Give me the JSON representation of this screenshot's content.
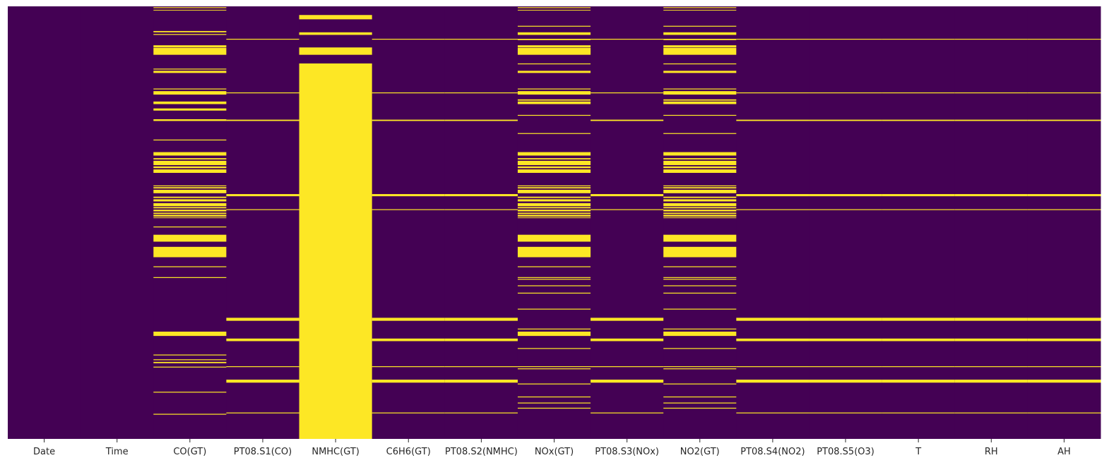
{
  "chart_data": {
    "type": "heatmap",
    "title": "",
    "xlabel": "",
    "ylabel": "",
    "colorbar": false,
    "colors": {
      "missing": "#fde725",
      "present": "#440154"
    },
    "value_meaning": "1 = missing (yellow), 0 = present (purple)",
    "row_range": [
      0,
      1
    ],
    "columns": [
      {
        "name": "Date",
        "missing_bands": []
      },
      {
        "name": "Time",
        "missing_bands": []
      },
      {
        "name": "CO(GT)",
        "missing_bands": [
          [
            0.002,
            0.004
          ],
          [
            0.008,
            0.009
          ],
          [
            0.057,
            0.06
          ],
          [
            0.064,
            0.066
          ],
          [
            0.09,
            0.095
          ],
          [
            0.096,
            0.112
          ],
          [
            0.144,
            0.146
          ],
          [
            0.149,
            0.154
          ],
          [
            0.19,
            0.192
          ],
          [
            0.196,
            0.204
          ],
          [
            0.22,
            0.226
          ],
          [
            0.236,
            0.241
          ],
          [
            0.261,
            0.265
          ],
          [
            0.308,
            0.31
          ],
          [
            0.337,
            0.345
          ],
          [
            0.351,
            0.354
          ],
          [
            0.357,
            0.367
          ],
          [
            0.37,
            0.374
          ],
          [
            0.377,
            0.385
          ],
          [
            0.414,
            0.416
          ],
          [
            0.418,
            0.421
          ],
          [
            0.424,
            0.432
          ],
          [
            0.44,
            0.443
          ],
          [
            0.446,
            0.451
          ],
          [
            0.455,
            0.462
          ],
          [
            0.464,
            0.467
          ],
          [
            0.47,
            0.474
          ],
          [
            0.477,
            0.48
          ],
          [
            0.482,
            0.486
          ],
          [
            0.488,
            0.489
          ],
          [
            0.509,
            0.511
          ],
          [
            0.528,
            0.544
          ],
          [
            0.556,
            0.58
          ],
          [
            0.601,
            0.603
          ],
          [
            0.626,
            0.628
          ],
          [
            0.752,
            0.762
          ],
          [
            0.805,
            0.807
          ],
          [
            0.816,
            0.818
          ],
          [
            0.822,
            0.825
          ],
          [
            0.833,
            0.835
          ],
          [
            0.891,
            0.893
          ],
          [
            0.942,
            0.944
          ]
        ]
      },
      {
        "name": "PT08.S1(CO)",
        "missing_bands": [
          [
            0.075,
            0.077
          ],
          [
            0.199,
            0.201
          ],
          [
            0.262,
            0.265
          ],
          [
            0.434,
            0.439
          ],
          [
            0.469,
            0.471
          ],
          [
            0.72,
            0.727
          ],
          [
            0.768,
            0.774
          ],
          [
            0.832,
            0.834
          ],
          [
            0.863,
            0.87
          ],
          [
            0.939,
            0.941
          ]
        ]
      },
      {
        "name": "NMHC(GT)",
        "missing_bands": [
          [
            0.02,
            0.03
          ],
          [
            0.06,
            0.066
          ],
          [
            0.095,
            0.112
          ],
          [
            0.132,
            1.0
          ]
        ]
      },
      {
        "name": "C6H6(GT)",
        "missing_bands": [
          [
            0.075,
            0.077
          ],
          [
            0.199,
            0.201
          ],
          [
            0.262,
            0.265
          ],
          [
            0.434,
            0.439
          ],
          [
            0.469,
            0.471
          ],
          [
            0.72,
            0.727
          ],
          [
            0.768,
            0.774
          ],
          [
            0.832,
            0.834
          ],
          [
            0.863,
            0.87
          ],
          [
            0.939,
            0.941
          ]
        ]
      },
      {
        "name": "PT08.S2(NMHC)",
        "missing_bands": [
          [
            0.075,
            0.077
          ],
          [
            0.199,
            0.201
          ],
          [
            0.262,
            0.265
          ],
          [
            0.434,
            0.439
          ],
          [
            0.469,
            0.471
          ],
          [
            0.72,
            0.727
          ],
          [
            0.768,
            0.774
          ],
          [
            0.832,
            0.834
          ],
          [
            0.863,
            0.87
          ],
          [
            0.939,
            0.941
          ]
        ]
      },
      {
        "name": "NOx(GT)",
        "missing_bands": [
          [
            0.002,
            0.004
          ],
          [
            0.008,
            0.009
          ],
          [
            0.045,
            0.047
          ],
          [
            0.06,
            0.066
          ],
          [
            0.075,
            0.078
          ],
          [
            0.09,
            0.095
          ],
          [
            0.096,
            0.112
          ],
          [
            0.132,
            0.134
          ],
          [
            0.149,
            0.154
          ],
          [
            0.19,
            0.192
          ],
          [
            0.196,
            0.204
          ],
          [
            0.215,
            0.218
          ],
          [
            0.22,
            0.226
          ],
          [
            0.251,
            0.253
          ],
          [
            0.293,
            0.295
          ],
          [
            0.337,
            0.345
          ],
          [
            0.351,
            0.354
          ],
          [
            0.357,
            0.367
          ],
          [
            0.37,
            0.374
          ],
          [
            0.377,
            0.385
          ],
          [
            0.414,
            0.416
          ],
          [
            0.418,
            0.421
          ],
          [
            0.424,
            0.432
          ],
          [
            0.44,
            0.443
          ],
          [
            0.446,
            0.451
          ],
          [
            0.455,
            0.462
          ],
          [
            0.464,
            0.467
          ],
          [
            0.47,
            0.474
          ],
          [
            0.477,
            0.48
          ],
          [
            0.482,
            0.486
          ],
          [
            0.488,
            0.489
          ],
          [
            0.528,
            0.544
          ],
          [
            0.556,
            0.58
          ],
          [
            0.601,
            0.603
          ],
          [
            0.626,
            0.628
          ],
          [
            0.63,
            0.632
          ],
          [
            0.645,
            0.647
          ],
          [
            0.662,
            0.664
          ],
          [
            0.699,
            0.701
          ],
          [
            0.745,
            0.747
          ],
          [
            0.752,
            0.762
          ],
          [
            0.79,
            0.792
          ],
          [
            0.832,
            0.834
          ],
          [
            0.837,
            0.839
          ],
          [
            0.872,
            0.874
          ],
          [
            0.902,
            0.904
          ],
          [
            0.916,
            0.918
          ],
          [
            0.928,
            0.93
          ]
        ]
      },
      {
        "name": "PT08.S3(NOx)",
        "missing_bands": [
          [
            0.075,
            0.077
          ],
          [
            0.199,
            0.201
          ],
          [
            0.262,
            0.265
          ],
          [
            0.434,
            0.439
          ],
          [
            0.469,
            0.471
          ],
          [
            0.72,
            0.727
          ],
          [
            0.768,
            0.774
          ],
          [
            0.832,
            0.834
          ],
          [
            0.863,
            0.87
          ],
          [
            0.939,
            0.941
          ]
        ]
      },
      {
        "name": "NO2(GT)",
        "missing_bands": [
          [
            0.002,
            0.004
          ],
          [
            0.008,
            0.009
          ],
          [
            0.045,
            0.047
          ],
          [
            0.06,
            0.066
          ],
          [
            0.075,
            0.078
          ],
          [
            0.09,
            0.095
          ],
          [
            0.096,
            0.112
          ],
          [
            0.132,
            0.134
          ],
          [
            0.149,
            0.154
          ],
          [
            0.19,
            0.192
          ],
          [
            0.196,
            0.204
          ],
          [
            0.215,
            0.218
          ],
          [
            0.22,
            0.226
          ],
          [
            0.251,
            0.253
          ],
          [
            0.293,
            0.295
          ],
          [
            0.337,
            0.345
          ],
          [
            0.351,
            0.354
          ],
          [
            0.357,
            0.367
          ],
          [
            0.37,
            0.374
          ],
          [
            0.377,
            0.385
          ],
          [
            0.414,
            0.416
          ],
          [
            0.418,
            0.421
          ],
          [
            0.424,
            0.432
          ],
          [
            0.44,
            0.443
          ],
          [
            0.446,
            0.451
          ],
          [
            0.455,
            0.462
          ],
          [
            0.464,
            0.467
          ],
          [
            0.47,
            0.474
          ],
          [
            0.477,
            0.48
          ],
          [
            0.482,
            0.486
          ],
          [
            0.488,
            0.489
          ],
          [
            0.528,
            0.544
          ],
          [
            0.556,
            0.58
          ],
          [
            0.601,
            0.603
          ],
          [
            0.626,
            0.628
          ],
          [
            0.63,
            0.632
          ],
          [
            0.645,
            0.647
          ],
          [
            0.662,
            0.664
          ],
          [
            0.699,
            0.701
          ],
          [
            0.745,
            0.747
          ],
          [
            0.752,
            0.762
          ],
          [
            0.79,
            0.792
          ],
          [
            0.832,
            0.834
          ],
          [
            0.837,
            0.839
          ],
          [
            0.872,
            0.874
          ],
          [
            0.902,
            0.904
          ],
          [
            0.916,
            0.918
          ],
          [
            0.928,
            0.93
          ]
        ]
      },
      {
        "name": "PT08.S4(NO2)",
        "missing_bands": [
          [
            0.075,
            0.077
          ],
          [
            0.199,
            0.201
          ],
          [
            0.262,
            0.265
          ],
          [
            0.434,
            0.439
          ],
          [
            0.469,
            0.471
          ],
          [
            0.72,
            0.727
          ],
          [
            0.768,
            0.774
          ],
          [
            0.832,
            0.834
          ],
          [
            0.863,
            0.87
          ],
          [
            0.939,
            0.941
          ]
        ]
      },
      {
        "name": "PT08.S5(O3)",
        "missing_bands": [
          [
            0.075,
            0.077
          ],
          [
            0.199,
            0.201
          ],
          [
            0.262,
            0.265
          ],
          [
            0.434,
            0.439
          ],
          [
            0.469,
            0.471
          ],
          [
            0.72,
            0.727
          ],
          [
            0.768,
            0.774
          ],
          [
            0.832,
            0.834
          ],
          [
            0.863,
            0.87
          ],
          [
            0.939,
            0.941
          ]
        ]
      },
      {
        "name": "T",
        "missing_bands": [
          [
            0.075,
            0.077
          ],
          [
            0.199,
            0.201
          ],
          [
            0.262,
            0.265
          ],
          [
            0.434,
            0.439
          ],
          [
            0.469,
            0.471
          ],
          [
            0.72,
            0.727
          ],
          [
            0.768,
            0.774
          ],
          [
            0.832,
            0.834
          ],
          [
            0.863,
            0.87
          ],
          [
            0.939,
            0.941
          ]
        ]
      },
      {
        "name": "RH",
        "missing_bands": [
          [
            0.075,
            0.077
          ],
          [
            0.199,
            0.201
          ],
          [
            0.262,
            0.265
          ],
          [
            0.434,
            0.439
          ],
          [
            0.469,
            0.471
          ],
          [
            0.72,
            0.727
          ],
          [
            0.768,
            0.774
          ],
          [
            0.832,
            0.834
          ],
          [
            0.863,
            0.87
          ],
          [
            0.939,
            0.941
          ]
        ]
      },
      {
        "name": "AH",
        "missing_bands": [
          [
            0.075,
            0.077
          ],
          [
            0.199,
            0.201
          ],
          [
            0.262,
            0.265
          ],
          [
            0.434,
            0.439
          ],
          [
            0.469,
            0.471
          ],
          [
            0.72,
            0.727
          ],
          [
            0.768,
            0.774
          ],
          [
            0.832,
            0.834
          ],
          [
            0.863,
            0.87
          ],
          [
            0.939,
            0.941
          ]
        ]
      }
    ]
  }
}
